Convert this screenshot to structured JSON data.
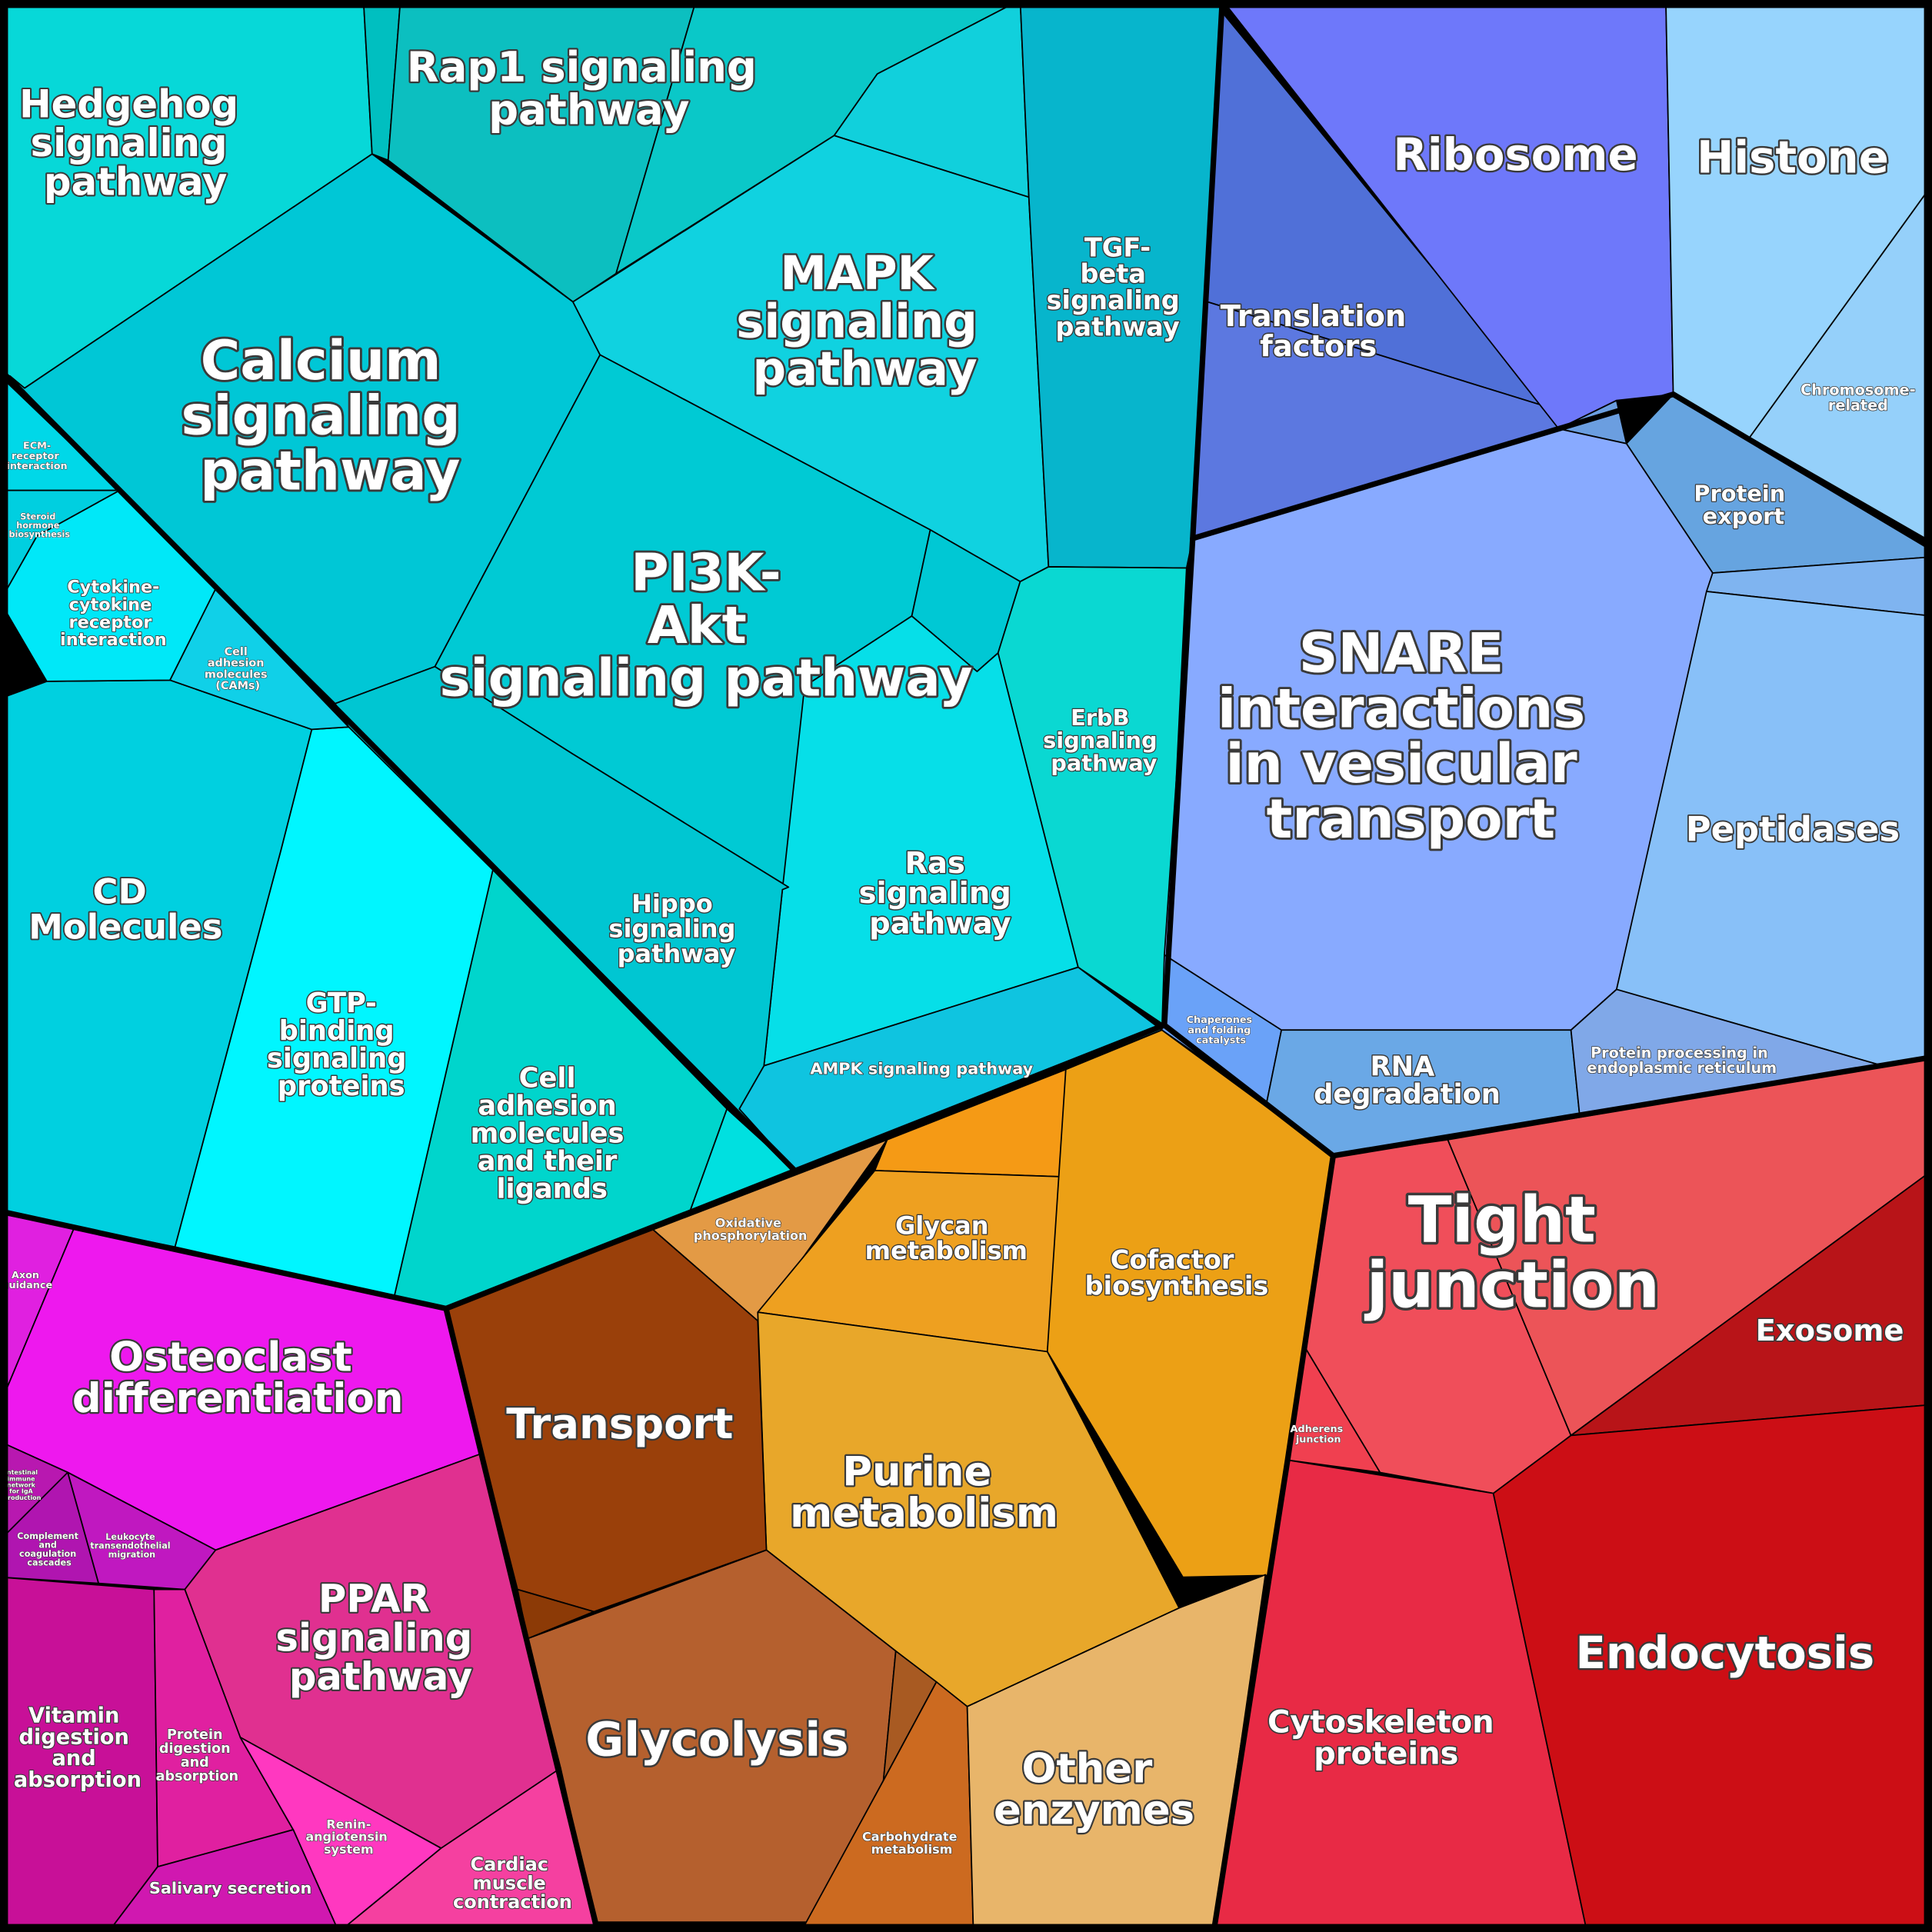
{
  "cells": [
    {
      "label": "Hedgehog signaling pathway"
    },
    {
      "label": "Rap1 signaling pathway"
    },
    {
      "label": "Calcium signaling pathway"
    },
    {
      "label": "MAPK signaling pathway"
    },
    {
      "label": "TGF-beta signaling pathway"
    },
    {
      "label": "PI3K-Akt signaling pathway"
    },
    {
      "label": "ErbB signaling pathway"
    },
    {
      "label": "Ras signaling pathway"
    },
    {
      "label": "Hippo signaling pathway"
    },
    {
      "label": "AMPK signaling pathway"
    },
    {
      "label": "Cell adhesion molecules and their ligands"
    },
    {
      "label": "GTP-binding signaling proteins"
    },
    {
      "label": "CD Molecules"
    },
    {
      "label": "Cytokine-cytokine receptor interaction"
    },
    {
      "label": "Cell adhesion molecules (CAMs)"
    },
    {
      "label": "ECM-receptor interaction"
    },
    {
      "label": "Steroid hormone biosynthesis"
    },
    {
      "label": "Ribosome"
    },
    {
      "label": "Histone"
    },
    {
      "label": "Translation factors"
    },
    {
      "label": "Chromosome-related"
    },
    {
      "label": "Protein export"
    },
    {
      "label": "SNARE interactions in vesicular transport"
    },
    {
      "label": "Peptidases"
    },
    {
      "label": "Chaperones and folding catalysts"
    },
    {
      "label": "RNA degradation"
    },
    {
      "label": "Protein processing in endoplasmic reticulum"
    },
    {
      "label": "Oxidative phosphorylation"
    },
    {
      "label": "Glycan metabolism"
    },
    {
      "label": "Cofactor biosynthesis"
    },
    {
      "label": "Transport"
    },
    {
      "label": "Purine metabolism"
    },
    {
      "label": "Glycolysis"
    },
    {
      "label": "Carbohydrate metabolism"
    },
    {
      "label": "Other enzymes"
    },
    {
      "label": "Tight junction"
    },
    {
      "label": "Adherens junction"
    },
    {
      "label": "Exosome"
    },
    {
      "label": "Cytoskeleton proteins"
    },
    {
      "label": "Endocytosis"
    },
    {
      "label": "Axon guidance"
    },
    {
      "label": "Osteoclast differentiation"
    },
    {
      "label": "Complement and coagulation cascades"
    },
    {
      "label": "Leukocyte transendothelial migration"
    },
    {
      "label": "PPAR signaling pathway"
    },
    {
      "label": "Vitamin digestion and absorption"
    },
    {
      "label": "Protein digestion and absorption"
    },
    {
      "label": "Renin-angiotensin system"
    },
    {
      "label": "Salivary secretion"
    },
    {
      "label": "Cardiac muscle contraction"
    },
    {
      "label": "Intestinal immune network for IgA production"
    }
  ]
}
